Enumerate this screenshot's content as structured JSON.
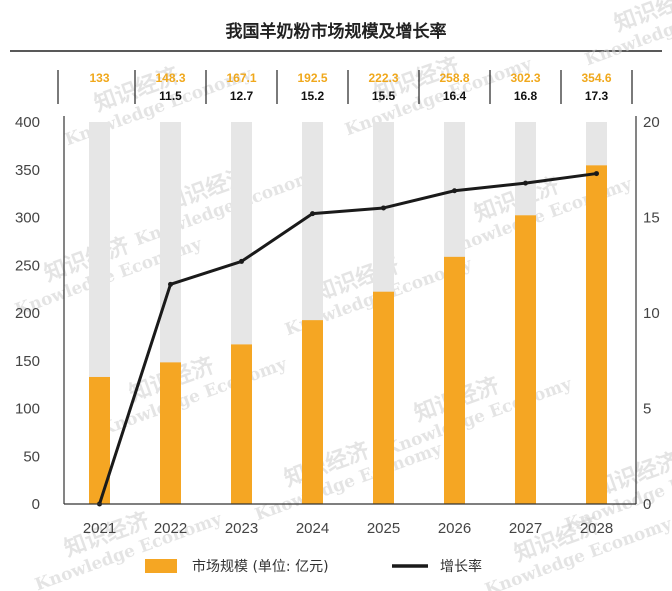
{
  "chart_data": {
    "type": "bar",
    "title": "我国羊奶粉市场规模及增长率",
    "categories": [
      "2021",
      "2022",
      "2023",
      "2024",
      "2025",
      "2026",
      "2027",
      "2028"
    ],
    "series": [
      {
        "name": "市场规模 (单位: 亿元)",
        "type": "bar",
        "axis": "left",
        "values": [
          133,
          148.3,
          167.1,
          192.5,
          222.3,
          258.8,
          302.3,
          354.6
        ],
        "labels": [
          "133",
          "148.3",
          "167.1",
          "192.5",
          "222.3",
          "258.8",
          "302.3",
          "354.6"
        ],
        "color": "#f5a623"
      },
      {
        "name": "增长率",
        "type": "line",
        "axis": "right",
        "values": [
          null,
          11.5,
          12.7,
          15.2,
          15.5,
          16.4,
          16.8,
          17.3
        ],
        "labels": [
          "",
          "11.5",
          "12.7",
          "15.2",
          "15.5",
          "16.4",
          "16.8",
          "17.3"
        ],
        "color": "#1a1a1a"
      }
    ],
    "ylim": [
      0,
      400
    ],
    "yticks": [
      0,
      50,
      100,
      150,
      200,
      250,
      300,
      350,
      400
    ],
    "y2lim": [
      0,
      20
    ],
    "y2ticks": [
      0,
      5,
      10,
      15,
      20
    ],
    "background_bar_color": "#e6e6e6",
    "legend_position": "bottom",
    "grid": false
  },
  "watermark": {
    "cn": "知识经济",
    "en": "Knowledge Economy"
  }
}
